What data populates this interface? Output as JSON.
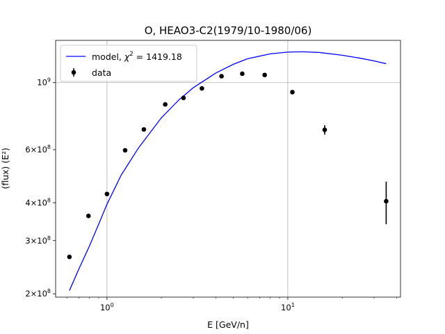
{
  "chart_data": {
    "type": "scatter",
    "title": "O, HEAO3-C2(1979/10-1980/06)",
    "xlabel": "E [GeV/n]",
    "ylabel": "(flux)  (E²)",
    "xscale": "log",
    "yscale": "log",
    "xlim": [
      0.52,
      42
    ],
    "ylim": [
      195000000.0,
      1380000000.0
    ],
    "grid": true,
    "legend_position": "top-left",
    "x_ticks": [
      {
        "value": 1,
        "base": "10",
        "exp": "0"
      },
      {
        "value": 10,
        "base": "10",
        "exp": "1"
      }
    ],
    "y_ticks": [
      {
        "value": 1000000000.0,
        "mant": "",
        "base": "10",
        "exp": "9"
      },
      {
        "value": 600000000.0,
        "mant": "6×",
        "base": "10",
        "exp": "8"
      },
      {
        "value": 400000000.0,
        "mant": "4×",
        "base": "10",
        "exp": "8"
      },
      {
        "value": 300000000.0,
        "mant": "3×",
        "base": "10",
        "exp": "8"
      },
      {
        "value": 200000000.0,
        "mant": "2×",
        "base": "10",
        "exp": "8"
      }
    ],
    "series": [
      {
        "name": "model, χ² = 1419.18",
        "legend_prefix": "model, ",
        "legend_chi": "χ",
        "legend_sup": "2",
        "legend_suffix": " = 1419.18",
        "kind": "line",
        "color": "#0000ff",
        "x": [
          0.62,
          0.7,
          0.8,
          0.9,
          1.0,
          1.2,
          1.5,
          2.0,
          2.5,
          3.0,
          4.0,
          5.0,
          6.0,
          8.0,
          10.0,
          12.0,
          15.0,
          20.0,
          25.0,
          30.0,
          35.0
        ],
        "y": [
          205000000.0,
          242000000.0,
          288000000.0,
          340000000.0,
          396000000.0,
          495000000.0,
          610000000.0,
          765000000.0,
          877000000.0,
          962000000.0,
          1076000000.0,
          1150000000.0,
          1200000000.0,
          1245000000.0,
          1262000000.0,
          1265000000.0,
          1258000000.0,
          1232000000.0,
          1205000000.0,
          1180000000.0,
          1155000000.0
        ]
      },
      {
        "name": "data",
        "kind": "errorbar",
        "color": "#000000",
        "x": [
          0.62,
          0.79,
          1.0,
          1.26,
          1.6,
          2.1,
          2.65,
          3.35,
          4.3,
          5.6,
          7.45,
          10.6,
          16.0,
          35.0
        ],
        "y": [
          265000000.0,
          362000000.0,
          428000000.0,
          597000000.0,
          700000000.0,
          847000000.0,
          890000000.0,
          957000000.0,
          1050000000.0,
          1070000000.0,
          1060000000.0,
          930000000.0,
          698000000.0,
          405000000.0
        ],
        "yerr": [
          0,
          0,
          0,
          0,
          0,
          0,
          0,
          0,
          0,
          0,
          15000000.0,
          0,
          25000000.0,
          65000000.0
        ]
      }
    ]
  }
}
